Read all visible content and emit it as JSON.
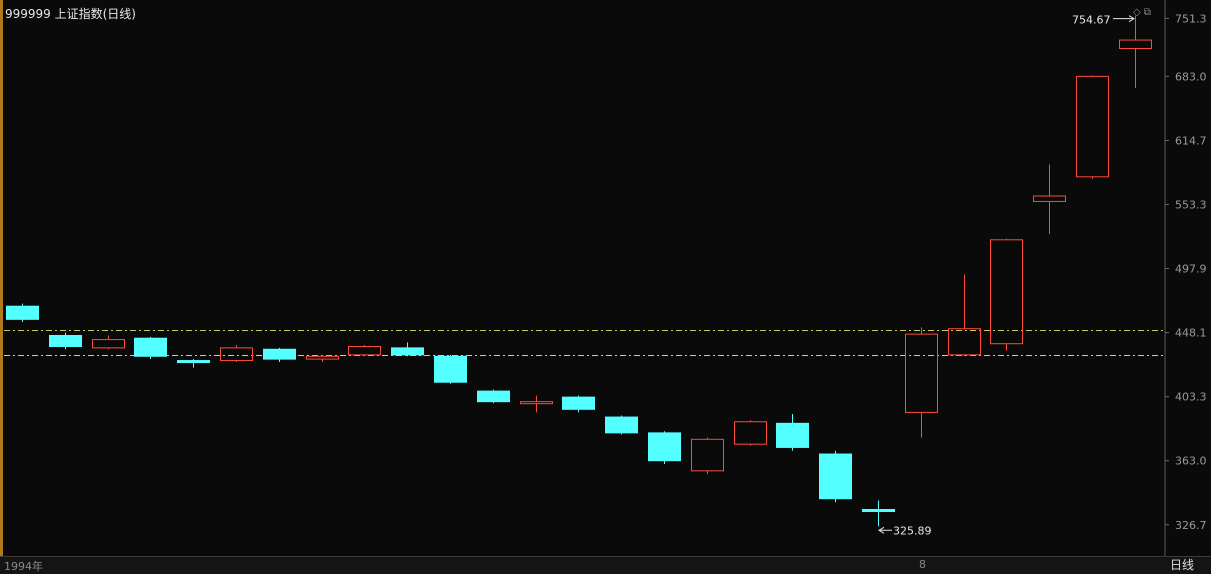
{
  "header": {
    "title": "999999 上证指数(日线)"
  },
  "toolbar": {
    "icons": [
      "diamond-icon",
      "restore-window-icon"
    ]
  },
  "bottom": {
    "year_label": "1994年",
    "mid_date_label": "8",
    "period_label": "日线"
  },
  "colors": {
    "background": "#0a0a0a",
    "up_candle": "#ff4a3a",
    "down_candle": "#54ffff",
    "line_upper": "#c8c860",
    "line_lower": "#d8d860",
    "axis_text": "#9a9a9a"
  },
  "chart_data": {
    "type": "candlestick",
    "ylabel_ticks": [
      751.3,
      683.0,
      614.7,
      553.3,
      497.9,
      448.1,
      403.3,
      363.0,
      326.7
    ],
    "y_range": [
      316,
      763
    ],
    "log_scale": true,
    "reference_lines": [
      {
        "name": "upper",
        "value": 449.7
      },
      {
        "name": "lower",
        "value": 432.0
      }
    ],
    "annotations": {
      "max_label": "754.67",
      "min_label": "325.89",
      "max_value": 754.67,
      "min_value": 325.89
    },
    "candles": [
      {
        "open": 468,
        "close": 458,
        "high": 470,
        "low": 456
      },
      {
        "open": 446,
        "close": 438,
        "high": 448,
        "low": 436
      },
      {
        "open": 437,
        "close": 443,
        "high": 446,
        "low": 436
      },
      {
        "open": 444,
        "close": 431,
        "high": 445,
        "low": 429
      },
      {
        "open": 428,
        "close": 427,
        "high": 429,
        "low": 423
      },
      {
        "open": 428,
        "close": 437,
        "high": 439,
        "low": 427
      },
      {
        "open": 436,
        "close": 429,
        "high": 437,
        "low": 427
      },
      {
        "open": 429,
        "close": 431,
        "high": 432,
        "low": 427
      },
      {
        "open": 432,
        "close": 438,
        "high": 439,
        "low": 431
      },
      {
        "open": 437,
        "close": 432,
        "high": 441,
        "low": 431
      },
      {
        "open": 431,
        "close": 413,
        "high": 432,
        "low": 412
      },
      {
        "open": 407,
        "close": 400,
        "high": 408,
        "low": 399
      },
      {
        "open": 399,
        "close": 400,
        "high": 404,
        "low": 393
      },
      {
        "open": 403,
        "close": 395,
        "high": 404,
        "low": 393
      },
      {
        "open": 390,
        "close": 380,
        "high": 391,
        "low": 379
      },
      {
        "open": 380,
        "close": 363,
        "high": 381,
        "low": 361
      },
      {
        "open": 357,
        "close": 376,
        "high": 377,
        "low": 355
      },
      {
        "open": 373,
        "close": 387,
        "high": 388,
        "low": 372
      },
      {
        "open": 386,
        "close": 371,
        "high": 392,
        "low": 369
      },
      {
        "open": 367,
        "close": 341,
        "high": 369,
        "low": 339
      },
      {
        "open": 335,
        "close": 334,
        "high": 340,
        "low": 325.89
      },
      {
        "open": 393,
        "close": 447,
        "high": 452,
        "low": 377
      },
      {
        "open": 432,
        "close": 451,
        "high": 493,
        "low": 431
      },
      {
        "open": 440,
        "close": 522,
        "high": 523,
        "low": 435
      },
      {
        "open": 556,
        "close": 561,
        "high": 591,
        "low": 527
      },
      {
        "open": 579,
        "close": 683,
        "high": 684,
        "low": 577
      },
      {
        "open": 715,
        "close": 725,
        "high": 754.67,
        "low": 670
      }
    ]
  }
}
